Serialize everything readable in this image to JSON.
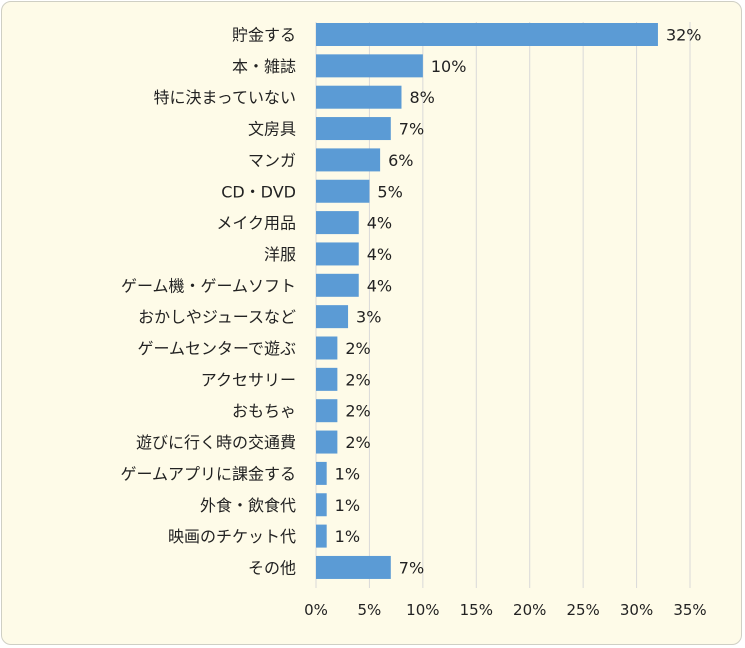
{
  "chart_data": {
    "type": "bar",
    "orientation": "horizontal",
    "categories": [
      "貯金する",
      "本・雑誌",
      "特に決まっていない",
      "文房具",
      "マンガ",
      "CD・DVD",
      "メイク用品",
      "洋服",
      "ゲーム機・ゲームソフト",
      "おかしやジュースなど",
      "ゲームセンターで遊ぶ",
      "アクセサリー",
      "おもちゃ",
      "遊びに行く時の交通費",
      "ゲームアプリに課金する",
      "外食・飲食代",
      "映画のチケット代",
      "その他"
    ],
    "values": [
      32,
      10,
      8,
      7,
      6,
      5,
      4,
      4,
      4,
      3,
      2,
      2,
      2,
      2,
      1,
      1,
      1,
      7
    ],
    "value_labels": [
      "32%",
      "10%",
      "8%",
      "7%",
      "6%",
      "5%",
      "4%",
      "4%",
      "4%",
      "3%",
      "2%",
      "2%",
      "2%",
      "2%",
      "1%",
      "1%",
      "1%",
      "7%"
    ],
    "xticks": [
      "0%",
      "5%",
      "10%",
      "15%",
      "20%",
      "25%",
      "30%",
      "35%"
    ],
    "xlim": [
      0,
      35
    ],
    "grid": true,
    "legend": "none",
    "bar_color": "#5b9bd5",
    "gridline_color": "#d9d9d9",
    "background_color": "#fefbe8"
  }
}
